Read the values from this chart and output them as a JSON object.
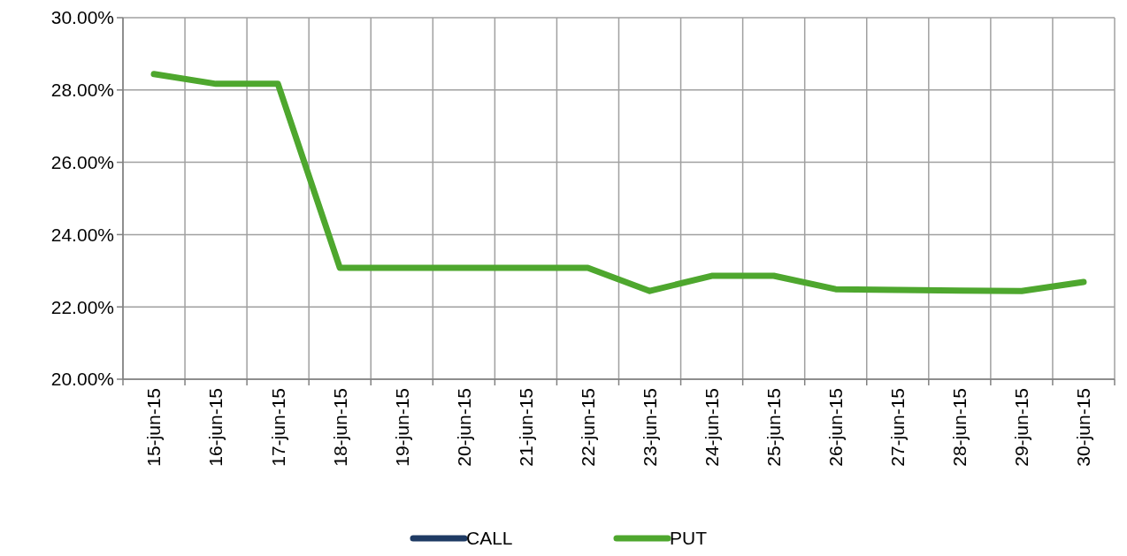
{
  "chart_data": {
    "type": "line",
    "categories": [
      "15-jun-15",
      "16-jun-15",
      "17-jun-15",
      "18-jun-15",
      "19-jun-15",
      "20-jun-15",
      "21-jun-15",
      "22-jun-15",
      "23-jun-15",
      "24-jun-15",
      "25-jun-15",
      "26-jun-15",
      "27-jun-15",
      "28-jun-15",
      "29-jun-15",
      "30-jun-15"
    ],
    "series": [
      {
        "name": "CALL",
        "color": "#1f3b64",
        "values": [
          null,
          null,
          null,
          null,
          null,
          null,
          null,
          null,
          null,
          null,
          null,
          null,
          null,
          null,
          null,
          null
        ]
      },
      {
        "name": "PUT",
        "color": "#4ea72e",
        "values": [
          28.44,
          28.17,
          28.17,
          23.08,
          23.08,
          23.08,
          23.08,
          23.08,
          22.44,
          22.86,
          22.86,
          22.49,
          22.47,
          22.45,
          22.44,
          22.69
        ]
      }
    ],
    "ylim": [
      20,
      30
    ],
    "yticks": [
      {
        "value": 20,
        "label": "20.00%"
      },
      {
        "value": 22,
        "label": "22.00%"
      },
      {
        "value": 24,
        "label": "24.00%"
      },
      {
        "value": 26,
        "label": "26.00%"
      },
      {
        "value": 28,
        "label": "28.00%"
      },
      {
        "value": 30,
        "label": "30.00%"
      }
    ],
    "grid": true,
    "legend": "bottom",
    "marker": "none",
    "line_style": "solid"
  }
}
